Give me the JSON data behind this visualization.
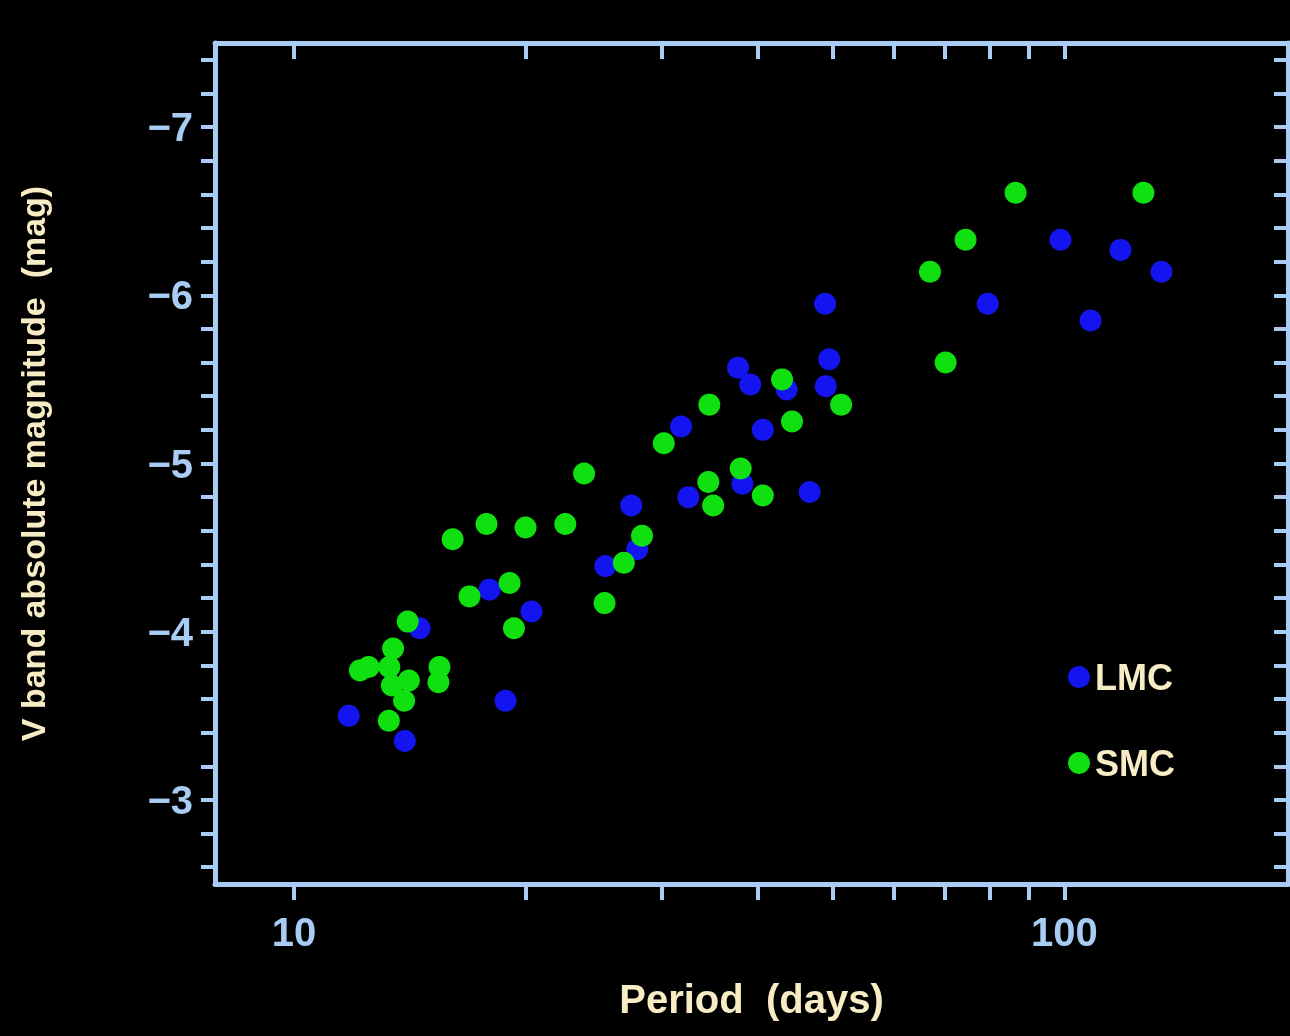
{
  "chart_data": {
    "type": "scatter",
    "xlabel": "Period  (days)",
    "ylabel": "V band absolute magnitude  (mag)",
    "log": "x",
    "marker": "circle",
    "legend": "bottom right",
    "grid": false,
    "xlim": [
      7.9,
      195
    ],
    "ylim": [
      -2.5,
      -7.5
    ],
    "xticks": [
      10,
      {
        "value": 20,
        "label": null
      },
      {
        "value": 30,
        "label": null
      },
      {
        "value": 40,
        "label": null
      },
      {
        "value": 50,
        "label": null
      },
      {
        "value": 60,
        "label": null
      },
      {
        "value": 70,
        "label": null
      },
      {
        "value": 80,
        "label": null
      },
      {
        "value": 90,
        "label": null
      },
      100
    ],
    "yticks": [
      {
        "value": -7.4,
        "label": null
      },
      {
        "value": -7.2,
        "label": null
      },
      -7,
      {
        "value": -6.8,
        "label": null
      },
      {
        "value": -6.6,
        "label": null
      },
      {
        "value": -6.4,
        "label": null
      },
      {
        "value": -6.2,
        "label": null
      },
      -6,
      {
        "value": -5.8,
        "label": null
      },
      {
        "value": -5.6,
        "label": null
      },
      {
        "value": -5.4,
        "label": null
      },
      {
        "value": -5.2,
        "label": null
      },
      -5,
      {
        "value": -4.8,
        "label": null
      },
      {
        "value": -4.6,
        "label": null
      },
      {
        "value": -4.4,
        "label": null
      },
      {
        "value": -4.2,
        "label": null
      },
      -4,
      {
        "value": -3.8,
        "label": null
      },
      {
        "value": -3.6,
        "label": null
      },
      {
        "value": -3.4,
        "label": null
      },
      {
        "value": -3.2,
        "label": null
      },
      -3,
      {
        "value": -2.8,
        "label": null
      },
      {
        "value": -2.6,
        "label": null
      }
    ],
    "series": [
      {
        "name": "LMC",
        "color": "#1414f0",
        "x": [
          11.78,
          13.93,
          14.56,
          17.94,
          18.82,
          20.34,
          25.36,
          27.4,
          27.9,
          31.8,
          32.5,
          37.7,
          38.2,
          39.1,
          40.6,
          43.6,
          46.7,
          48.9,
          49.0,
          49.5,
          79.5,
          98.8,
          108.1,
          118.2,
          133.6
        ],
        "values": [
          -3.5,
          -3.35,
          -4.02,
          -4.25,
          -3.59,
          -4.12,
          -4.39,
          -4.75,
          -4.49,
          -5.22,
          -4.8,
          -5.57,
          -4.88,
          -5.47,
          -5.2,
          -5.44,
          -4.83,
          -5.95,
          -5.46,
          -5.62,
          -5.95,
          -6.33,
          -5.85,
          -6.27,
          -6.14
        ]
      },
      {
        "name": "SMC",
        "color": "#10e010",
        "x": [
          12.18,
          12.5,
          13.28,
          13.4,
          13.45,
          13.3,
          13.9,
          14.05,
          14.1,
          15.45,
          15.4,
          16.07,
          16.9,
          17.78,
          19.05,
          19.3,
          19.98,
          22.5,
          23.8,
          25.3,
          26.8,
          28.3,
          30.2,
          34.6,
          34.5,
          35.0,
          38.0,
          40.6,
          43.0,
          44.3,
          51.3,
          66.9,
          70.1,
          74.4,
          86.4,
          126.6
        ],
        "values": [
          -3.77,
          -3.79,
          -3.47,
          -3.68,
          -3.9,
          -3.79,
          -3.59,
          -4.06,
          -3.71,
          -3.79,
          -3.7,
          -4.55,
          -4.21,
          -4.64,
          -4.29,
          -4.02,
          -4.62,
          -4.64,
          -4.94,
          -4.17,
          -4.41,
          -4.57,
          -5.12,
          -5.35,
          -4.89,
          -4.75,
          -4.97,
          -4.81,
          -5.5,
          -5.25,
          -5.35,
          -6.14,
          -5.6,
          -6.33,
          -6.61,
          -6.61
        ]
      }
    ]
  }
}
